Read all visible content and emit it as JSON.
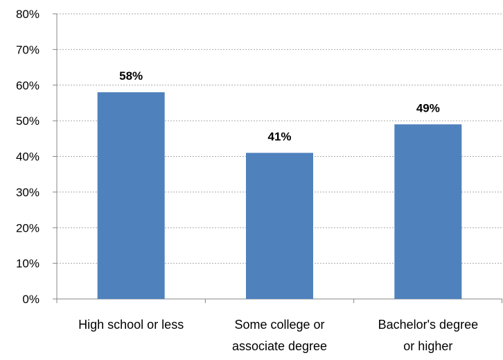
{
  "chart_data": {
    "type": "bar",
    "title": "",
    "xlabel": "",
    "ylabel": "",
    "categories": [
      [
        "High school or less"
      ],
      [
        "Some college or",
        "associate degree"
      ],
      [
        "Bachelor's degree",
        "or higher"
      ]
    ],
    "values": [
      58,
      41,
      49
    ],
    "value_labels": [
      "58%",
      "41%",
      "49%"
    ],
    "ylim": [
      0,
      80
    ],
    "yticks": [
      0,
      10,
      20,
      30,
      40,
      50,
      60,
      70,
      80
    ],
    "ytick_labels": [
      "0%",
      "10%",
      "20%",
      "30%",
      "40%",
      "50%",
      "60%",
      "70%",
      "80%"
    ],
    "grid": true,
    "legend": "none",
    "bar_color": "#4F81BD",
    "grid_color": "#A6A6A6",
    "axis_color": "#868686"
  }
}
